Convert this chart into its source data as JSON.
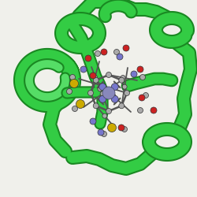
{
  "background_color": "#f0f0eb",
  "protein_color": "#33cc44",
  "protein_edge_color": "#1a8822",
  "ligand_color": "#aaaaaa",
  "ligand_edge_color": "#555555",
  "nitrogen_color": "#7777cc",
  "oxygen_color": "#cc2222",
  "sulfur_color": "#ccaa00",
  "metal_color": "#8888bb",
  "figsize": [
    2.5,
    2.5
  ],
  "dpi": 100
}
